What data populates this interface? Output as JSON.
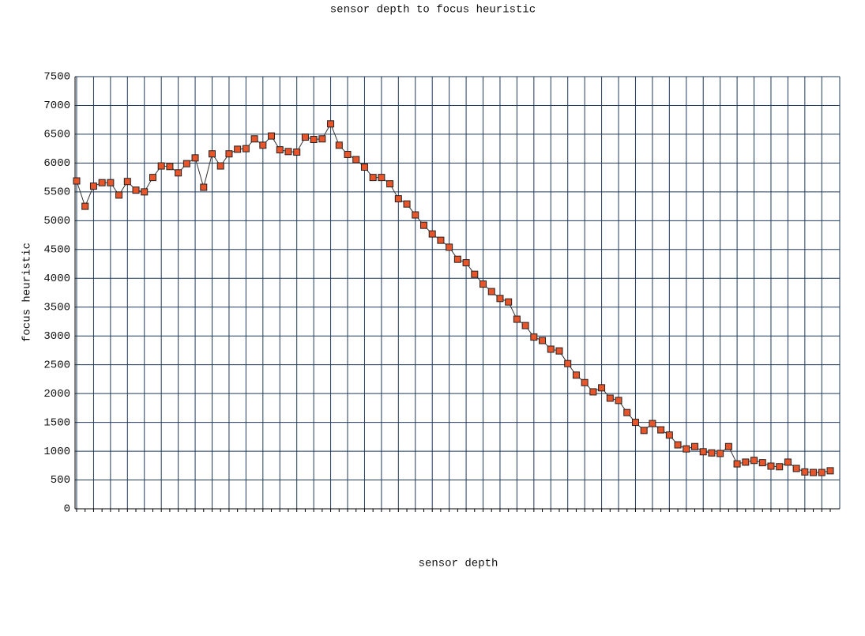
{
  "chart_data": {
    "type": "line",
    "title": "sensor depth to focus heuristic",
    "x_label": "sensor depth",
    "y_label": "focus heuristic",
    "categories": [
      null,
      null,
      null,
      null,
      null,
      null,
      null,
      null,
      null,
      null,
      null,
      null,
      null,
      null,
      null,
      null,
      null,
      null,
      null,
      null,
      null,
      null,
      null,
      null,
      null,
      null,
      null,
      null,
      null,
      null,
      null,
      null,
      null,
      null,
      null,
      null,
      null,
      null,
      null,
      null,
      null,
      null,
      null,
      null,
      null,
      null,
      null,
      null,
      null,
      null,
      null,
      null,
      null,
      null,
      null,
      null,
      null,
      null,
      null,
      null,
      null,
      null,
      null,
      null,
      null,
      null,
      null,
      null,
      null,
      null,
      null,
      null,
      null,
      null,
      null,
      null,
      null,
      null,
      null,
      null,
      null,
      null,
      null,
      null,
      null,
      null,
      null,
      null,
      null,
      null
    ],
    "series": [
      {
        "name": null,
        "color": "#e8552a",
        "line_color": "#333333",
        "values": [
          5690,
          5250,
          5600,
          5660,
          5660,
          5445,
          5680,
          5530,
          5500,
          5750,
          5950,
          5940,
          5830,
          5990,
          6090,
          5580,
          6160,
          5950,
          6160,
          6240,
          6250,
          6420,
          6310,
          6470,
          6230,
          6200,
          6190,
          6450,
          6410,
          6420,
          6680,
          6310,
          6150,
          6060,
          5930,
          5750,
          5750,
          5640,
          5380,
          5290,
          5100,
          4920,
          4770,
          4660,
          4540,
          4330,
          4270,
          4070,
          3900,
          3770,
          3650,
          3590,
          3290,
          3180,
          2980,
          2920,
          2770,
          2740,
          2520,
          2320,
          2190,
          2030,
          2100,
          1920,
          1880,
          1670,
          1500,
          1360,
          1480,
          1370,
          1280,
          1110,
          1040,
          1080,
          990,
          970,
          960,
          1080,
          780,
          810,
          840,
          800,
          740,
          730,
          810,
          700,
          640,
          630,
          630,
          660
        ]
      }
    ],
    "ylim": [
      0,
      7500
    ],
    "yticks": [
      0,
      500,
      1000,
      1500,
      2000,
      2500,
      3000,
      3500,
      4000,
      4500,
      5000,
      5500,
      6000,
      6500,
      7000,
      7500
    ],
    "grid": true,
    "grid_color": "#1f3a5a"
  }
}
